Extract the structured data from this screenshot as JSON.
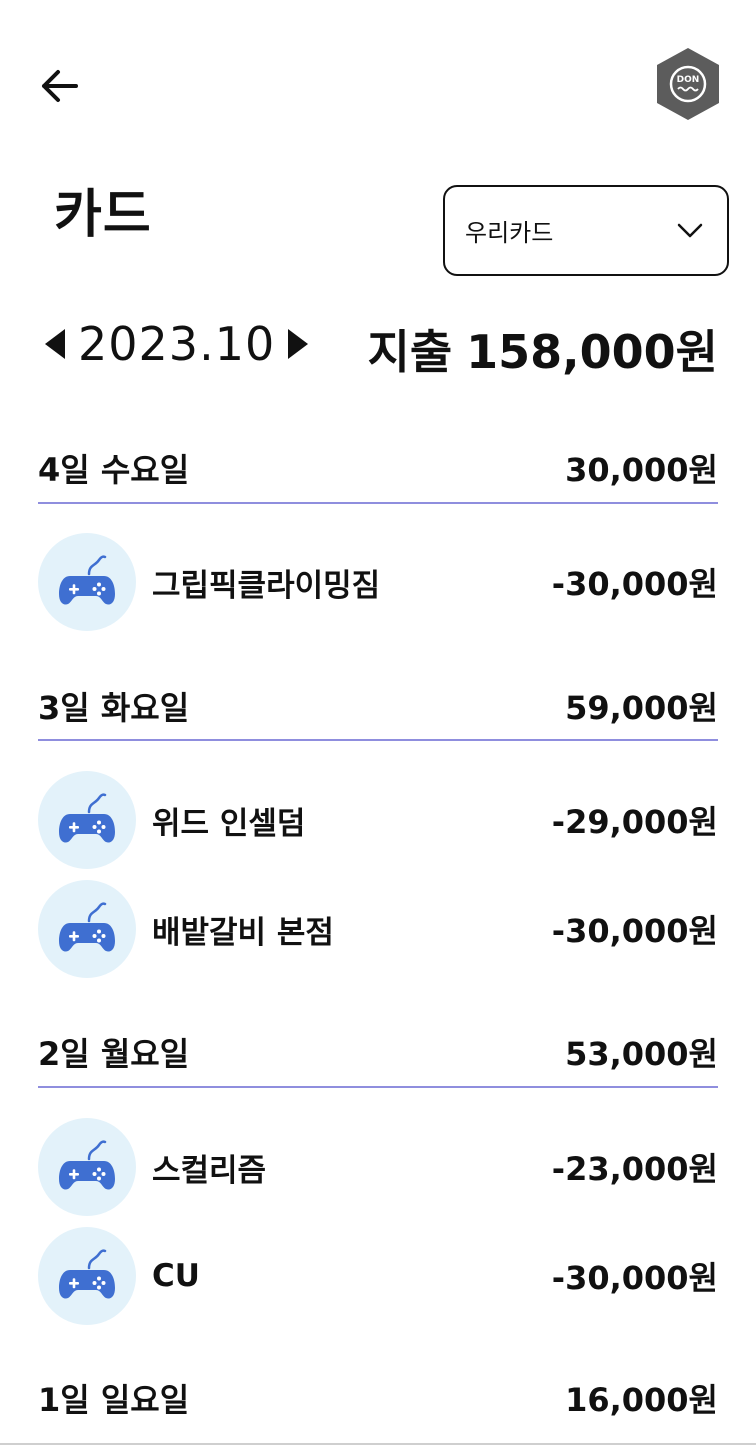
{
  "header": {
    "back_icon": "arrow-left-icon",
    "logo_text": "DON"
  },
  "page": {
    "title": "카드"
  },
  "card_select": {
    "selected": "우리카드",
    "icon": "chevron-down-icon"
  },
  "month_nav": {
    "month": "2023.10",
    "prev_icon": "triangle-left-icon",
    "next_icon": "triangle-right-icon"
  },
  "summary": {
    "label": "지출",
    "amount": "158,000원"
  },
  "days": [
    {
      "label": "4일 수요일",
      "total": "30,000원",
      "items": [
        {
          "name": "그립픽클라이밍짐",
          "amount": "-30,000원",
          "icon": "gamepad-icon"
        }
      ]
    },
    {
      "label": "3일 화요일",
      "total": "59,000원",
      "items": [
        {
          "name": "위드 인셀덤",
          "amount": "-29,000원",
          "icon": "gamepad-icon"
        },
        {
          "name": "배밭갈비 본점",
          "amount": "-30,000원",
          "icon": "gamepad-icon"
        }
      ]
    },
    {
      "label": "2일 월요일",
      "total": "53,000원",
      "items": [
        {
          "name": "스컬리즘",
          "amount": "-23,000원",
          "icon": "gamepad-icon"
        },
        {
          "name": "CU",
          "amount": "-30,000원",
          "icon": "gamepad-icon"
        }
      ]
    },
    {
      "label": "1일 일요일",
      "total": "16,000원",
      "items": []
    }
  ],
  "colors": {
    "divider": "#8f8ede",
    "icon_bg": "#e3f2fa",
    "icon_fg": "#3f6fd1"
  }
}
